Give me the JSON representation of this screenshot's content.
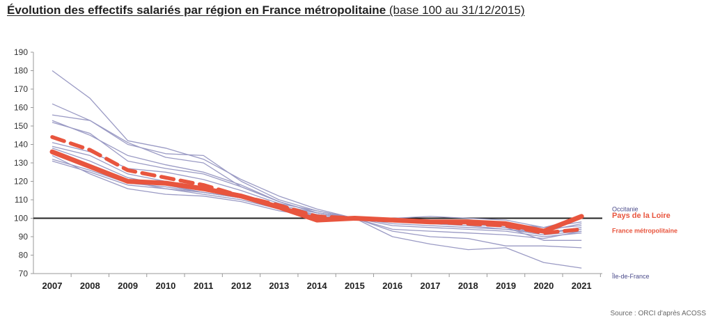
{
  "title": {
    "main": "Évolution des effectifs salariés par région en France métropolitaine",
    "sub": "(base 100 au 31/12/2015)"
  },
  "source": "Source : ORCI d'après ACOSS",
  "colors": {
    "regions": "#9a9ac4",
    "pays_de_la_loire": "#e8553e",
    "france": "#e8553e",
    "baseline": "#222222",
    "occitanie_label": "#4a4a8a"
  },
  "chart_data": {
    "type": "line",
    "x": [
      2007,
      2008,
      2009,
      2010,
      2011,
      2012,
      2013,
      2014,
      2015,
      2016,
      2017,
      2018,
      2019,
      2020,
      2021
    ],
    "x_tick_labels": [
      "2007",
      "2008",
      "2009",
      "2010",
      "2011",
      "2012",
      "2013",
      "2014",
      "2015",
      "2016",
      "2017",
      "2018",
      "2019",
      "2020",
      "2021"
    ],
    "y_ticks": [
      70,
      80,
      90,
      100,
      110,
      120,
      130,
      140,
      150,
      160,
      170,
      180,
      190
    ],
    "ylim": [
      70,
      190
    ],
    "reference_line": 100,
    "grid": false,
    "highlight_series": [
      {
        "name": "Pays de la Loire",
        "style": "solid-thick",
        "values": [
          136,
          128,
          120,
          119,
          116,
          112,
          106,
          99,
          100,
          99,
          98,
          98,
          97,
          93,
          101
        ]
      },
      {
        "name": "France métropolitaine",
        "style": "dashed-thick",
        "values": [
          144,
          137,
          126,
          122,
          118,
          112,
          107,
          101,
          100,
          99,
          98,
          97,
          96,
          92,
          94
        ]
      }
    ],
    "region_series": [
      {
        "name": "Occitanie",
        "values": [
          132,
          126,
          119,
          117,
          114,
          111,
          106,
          103,
          100,
          100,
          101,
          100,
          99,
          95,
          100
        ]
      },
      {
        "name": "Île-de-France",
        "values": [
          138,
          131,
          122,
          118,
          114,
          111,
          106,
          101,
          100,
          90,
          86,
          83,
          84,
          76,
          73
        ]
      },
      {
        "name": "",
        "values": [
          180,
          165,
          142,
          138,
          132,
          121,
          112,
          105,
          100,
          98,
          99,
          98,
          95,
          88,
          88
        ]
      },
      {
        "name": "",
        "values": [
          162,
          153,
          140,
          135,
          134,
          120,
          110,
          104,
          100,
          93,
          90,
          89,
          85,
          85,
          84
        ]
      },
      {
        "name": "",
        "values": [
          156,
          153,
          141,
          133,
          130,
          117,
          109,
          103,
          100,
          94,
          93,
          92,
          91,
          89,
          93
        ]
      },
      {
        "name": "",
        "values": [
          153,
          145,
          134,
          129,
          125,
          118,
          109,
          103,
          100,
          96,
          95,
          94,
          93,
          90,
          92
        ]
      },
      {
        "name": "",
        "values": [
          152,
          146,
          131,
          127,
          124,
          117,
          109,
          103,
          100,
          98,
          97,
          96,
          94,
          92,
          95
        ]
      },
      {
        "name": "",
        "values": [
          139,
          134,
          124,
          120,
          117,
          113,
          107,
          103,
          100,
          99,
          98,
          97,
          95,
          92,
          94
        ]
      },
      {
        "name": "",
        "values": [
          137,
          129,
          120,
          116,
          113,
          110,
          105,
          102,
          100,
          100,
          99,
          98,
          97,
          94,
          96
        ]
      },
      {
        "name": "",
        "values": [
          134,
          124,
          116,
          113,
          112,
          109,
          104,
          101,
          100,
          98,
          98,
          97,
          96,
          93,
          97
        ]
      },
      {
        "name": "",
        "values": [
          131,
          125,
          118,
          116,
          114,
          111,
          106,
          102,
          100,
          99,
          99,
          98,
          97,
          95,
          98
        ]
      },
      {
        "name": "",
        "values": [
          141,
          136,
          127,
          125,
          121,
          115,
          108,
          104,
          100,
          97,
          96,
          95,
          94,
          91,
          93
        ]
      }
    ],
    "end_labels": {
      "occitanie": "Occitanie",
      "pays_de_la_loire": "Pays de la Loire",
      "france": "France métropolitaine",
      "ile_de_france": "Île-de-France"
    }
  }
}
